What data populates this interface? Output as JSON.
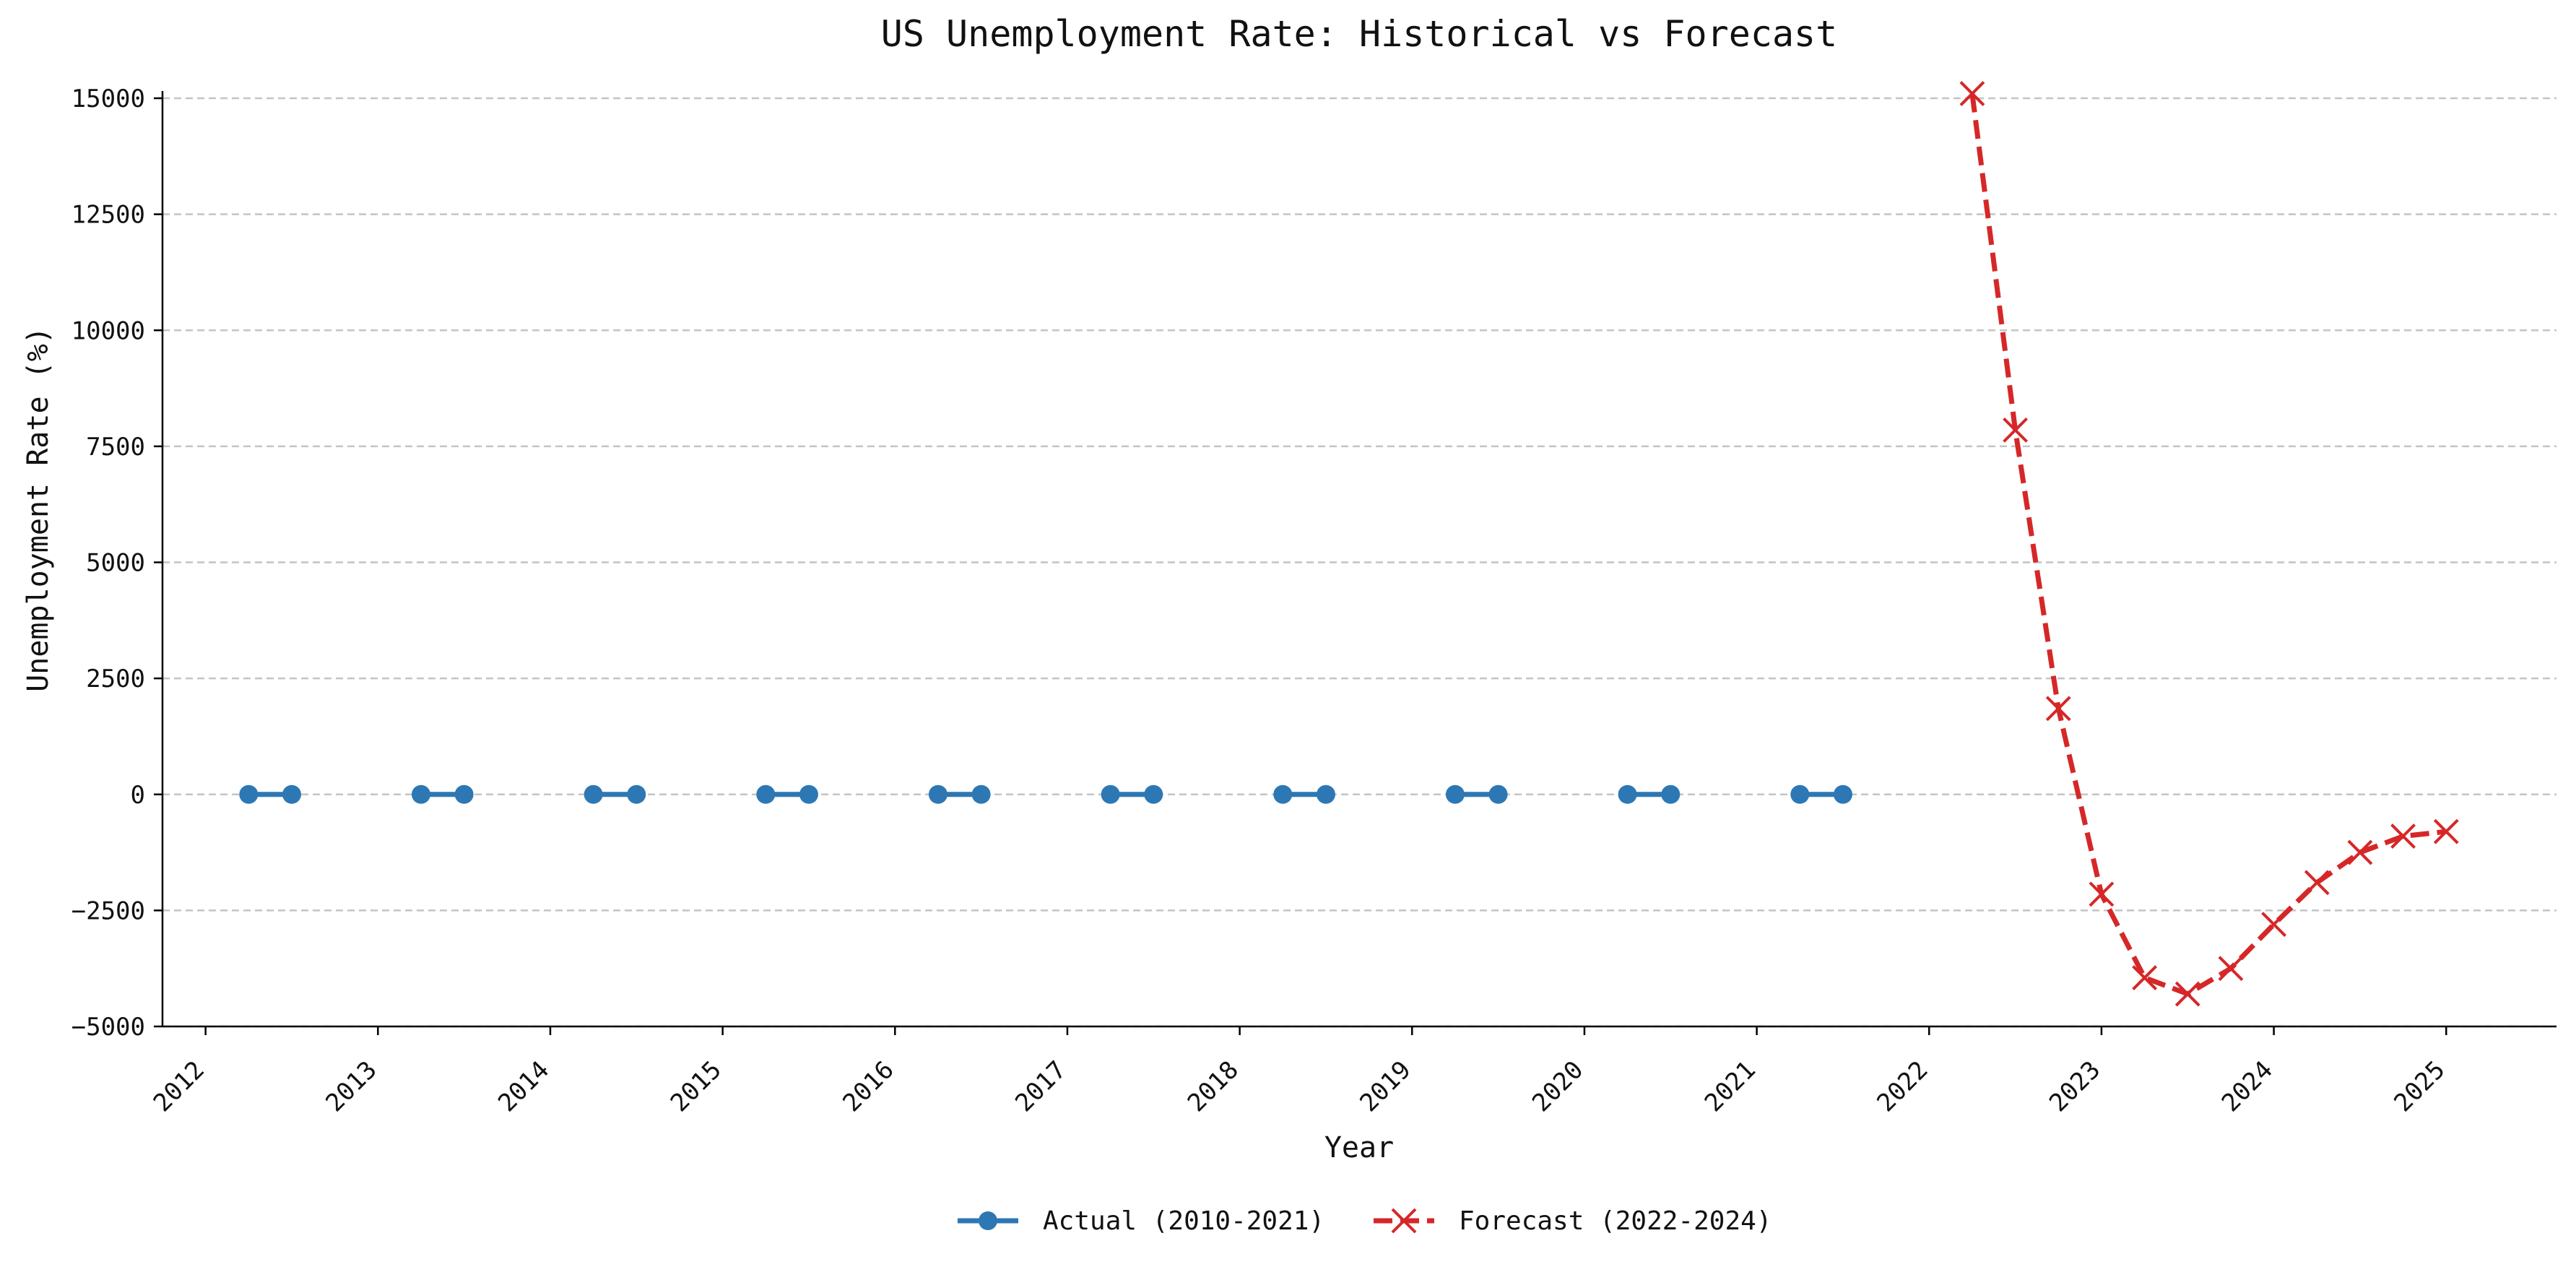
{
  "chart_data": {
    "type": "line",
    "title": "US Unemployment Rate: Historical vs Forecast",
    "xlabel": "Year",
    "ylabel": "Unemployment Rate (%)",
    "xlim": [
      2011.75,
      2025.64
    ],
    "ylim": [
      -5000,
      15000
    ],
    "x_ticks": [
      2012,
      2013,
      2014,
      2015,
      2016,
      2017,
      2018,
      2019,
      2020,
      2021,
      2022,
      2023,
      2024,
      2025
    ],
    "x_tick_labels": [
      "2012",
      "2013",
      "2014",
      "2015",
      "2016",
      "2017",
      "2018",
      "2019",
      "2020",
      "2021",
      "2022",
      "2023",
      "2024",
      "2025"
    ],
    "y_ticks": [
      -5000,
      -2500,
      0,
      2500,
      5000,
      7500,
      10000,
      12500,
      15000
    ],
    "y_tick_labels": [
      "−5000",
      "−2500",
      "0",
      "2500",
      "5000",
      "7500",
      "10000",
      "12500",
      "15000"
    ],
    "grid": "horizontal dashed",
    "legend_position": "bottom-center",
    "series": [
      {
        "name": "Actual (2010-2021)",
        "color": "#2d78b4",
        "style": "solid",
        "marker": "circle",
        "segments": [
          [
            [
              2012.25,
              0
            ],
            [
              2012.5,
              0
            ]
          ],
          [
            [
              2013.25,
              0
            ],
            [
              2013.5,
              0
            ]
          ],
          [
            [
              2014.25,
              0
            ],
            [
              2014.5,
              0
            ]
          ],
          [
            [
              2015.25,
              0
            ],
            [
              2015.5,
              0
            ]
          ],
          [
            [
              2016.25,
              0
            ],
            [
              2016.5,
              0
            ]
          ],
          [
            [
              2017.25,
              0
            ],
            [
              2017.5,
              0
            ]
          ],
          [
            [
              2018.25,
              0
            ],
            [
              2018.5,
              0
            ]
          ],
          [
            [
              2019.25,
              0
            ],
            [
              2019.5,
              0
            ]
          ],
          [
            [
              2020.25,
              0
            ],
            [
              2020.5,
              0
            ]
          ],
          [
            [
              2021.25,
              0
            ],
            [
              2021.5,
              0
            ]
          ]
        ]
      },
      {
        "name": "Forecast (2022-2024)",
        "color": "#d62728",
        "style": "dashed",
        "marker": "x",
        "segments": [
          [
            [
              2022.25,
              15100
            ],
            [
              2022.5,
              7850
            ],
            [
              2022.75,
              1850
            ],
            [
              2023.0,
              -2150
            ],
            [
              2023.25,
              -3950
            ],
            [
              2023.5,
              -4300
            ],
            [
              2023.75,
              -3750
            ],
            [
              2024.0,
              -2800
            ],
            [
              2024.25,
              -1900
            ],
            [
              2024.5,
              -1250
            ],
            [
              2024.75,
              -900
            ],
            [
              2025.0,
              -800
            ]
          ]
        ]
      }
    ]
  }
}
